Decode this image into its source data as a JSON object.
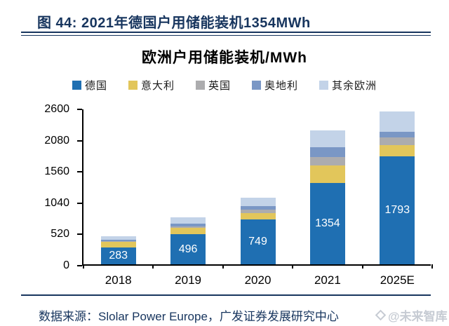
{
  "header": {
    "title": "图 44:  2021年德国户用储能装机1354MWh"
  },
  "chart_data": {
    "type": "bar",
    "stacked": true,
    "title": "欧洲户用储能装机/MWh",
    "categories": [
      "2018",
      "2019",
      "2020",
      "2021",
      "2025E"
    ],
    "series": [
      {
        "name": "德国",
        "color": "#1F6FB2",
        "values": [
          283,
          496,
          749,
          1354,
          1793
        ]
      },
      {
        "name": "意大利",
        "color": "#E2C65B",
        "values": [
          85,
          115,
          98,
          290,
          190
        ]
      },
      {
        "name": "英国",
        "color": "#ACACAE",
        "values": [
          20,
          20,
          58,
          140,
          125
        ]
      },
      {
        "name": "奥地利",
        "color": "#7A97C5",
        "values": [
          25,
          45,
          58,
          160,
          100
        ]
      },
      {
        "name": "其余欧洲",
        "color": "#C3D3E8",
        "values": [
          50,
          100,
          145,
          285,
          330
        ]
      }
    ],
    "data_labels": {
      "series": "德国",
      "values": [
        "283",
        "496",
        "749",
        "1354",
        "1793"
      ]
    },
    "xlabel": "",
    "ylabel": "",
    "ylim": [
      0,
      2600
    ],
    "yticks": [
      0,
      520,
      1040,
      1560,
      2080,
      2600
    ],
    "grid": false,
    "legend_position": "top"
  },
  "footer": {
    "source": "数据来源：Slolar Power Europe，广发证券发展研究中心",
    "watermark": "@未来智库"
  }
}
